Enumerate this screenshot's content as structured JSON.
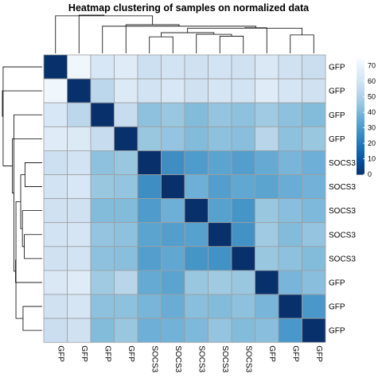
{
  "chart_data": {
    "type": "heatmap",
    "title": "Heatmap clustering of samples on normalized data",
    "row_labels": [
      "GFP",
      "GFP",
      "GFP",
      "GFP",
      "SOCS3",
      "SOCS3",
      "SOCS3",
      "SOCS3",
      "SOCS3",
      "GFP",
      "GFP",
      "GFP"
    ],
    "col_labels": [
      "GFP",
      "GFP",
      "GFP",
      "GFP",
      "SOCS3",
      "SOCS3",
      "SOCS3",
      "SOCS3",
      "SOCS3",
      "GFP",
      "GFP",
      "GFP"
    ],
    "values": [
      [
        0,
        72,
        63,
        66,
        59,
        61,
        60,
        61,
        60,
        64,
        60,
        58
      ],
      [
        72,
        0,
        54,
        65,
        61,
        63,
        60,
        62,
        61,
        66,
        62,
        60
      ],
      [
        63,
        54,
        0,
        57,
        44,
        46,
        42,
        45,
        44,
        47,
        44,
        42
      ],
      [
        66,
        65,
        57,
        0,
        46,
        45,
        42,
        44,
        43,
        53,
        44,
        46
      ],
      [
        59,
        61,
        44,
        46,
        0,
        27,
        31,
        34,
        32,
        36,
        40,
        38
      ],
      [
        61,
        63,
        46,
        45,
        27,
        0,
        38,
        32,
        35,
        34,
        37,
        39
      ],
      [
        60,
        60,
        42,
        42,
        31,
        38,
        0,
        33,
        29,
        46,
        43,
        41
      ],
      [
        61,
        62,
        45,
        44,
        34,
        32,
        33,
        0,
        28,
        47,
        42,
        45
      ],
      [
        60,
        61,
        44,
        43,
        32,
        35,
        29,
        28,
        0,
        46,
        44,
        42
      ],
      [
        64,
        66,
        47,
        53,
        36,
        34,
        46,
        47,
        46,
        0,
        40,
        43
      ],
      [
        60,
        62,
        44,
        44,
        40,
        37,
        43,
        42,
        44,
        40,
        0,
        30
      ],
      [
        58,
        60,
        42,
        46,
        38,
        39,
        41,
        45,
        42,
        43,
        30,
        0
      ]
    ],
    "legend": {
      "range": [
        0,
        75
      ],
      "ticks": [
        0,
        10,
        20,
        30,
        40,
        50,
        60,
        70
      ],
      "colors": [
        "#08306b",
        "#08519c",
        "#2171b5",
        "#4292c6",
        "#6baed6",
        "#9ecae1",
        "#c6dbef",
        "#deebf7",
        "#f7fbff"
      ]
    },
    "dendrogram_order": [
      0,
      1,
      2,
      3,
      4,
      5,
      6,
      7,
      8,
      9,
      10,
      11
    ],
    "grid": true,
    "legend_position": "right"
  }
}
